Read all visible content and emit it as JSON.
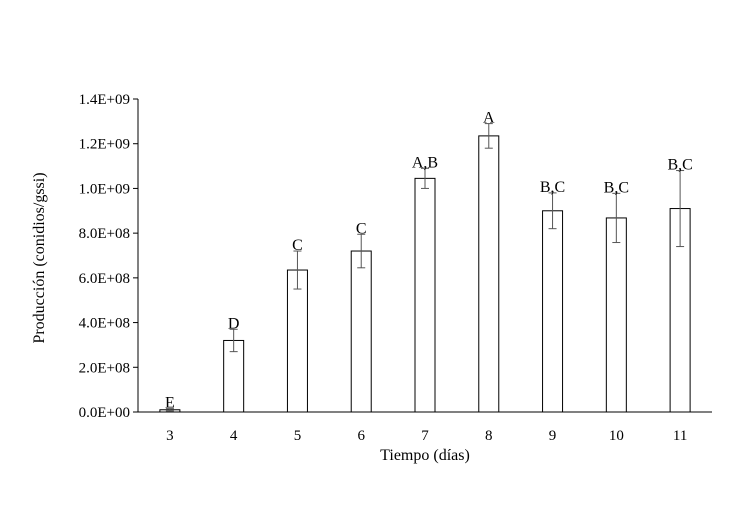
{
  "chart_data": {
    "type": "bar",
    "title": "",
    "xlabel": "Tiempo (días)",
    "ylabel": "Producción (conidios/gssi)",
    "ylim": [
      0,
      1400000000
    ],
    "yticks": [
      0,
      200000000,
      400000000,
      600000000,
      800000000,
      1000000000,
      1200000000,
      1400000000
    ],
    "ytick_labels": [
      "0.0E+00",
      "2.0E+08",
      "4.0E+08",
      "6.0E+08",
      "8.0E+08",
      "1.0E+09",
      "1.2E+09",
      "1.4E+09"
    ],
    "categories": [
      "3",
      "4",
      "5",
      "6",
      "7",
      "8",
      "9",
      "10",
      "11"
    ],
    "values": [
      10000000,
      320000000,
      635000000,
      720000000,
      1045000000,
      1235000000,
      900000000,
      868000000,
      910000000
    ],
    "errors": [
      5000000,
      50000000,
      85000000,
      75000000,
      45000000,
      55000000,
      80000000,
      110000000,
      170000000
    ],
    "labels": [
      "E",
      "D",
      "C",
      "C",
      "A,B",
      "A",
      "B,C",
      "B,C",
      "B,C"
    ],
    "grid": false,
    "bar_fill": "#ffffff",
    "bar_stroke": "#000000",
    "error_color": "#555555"
  }
}
